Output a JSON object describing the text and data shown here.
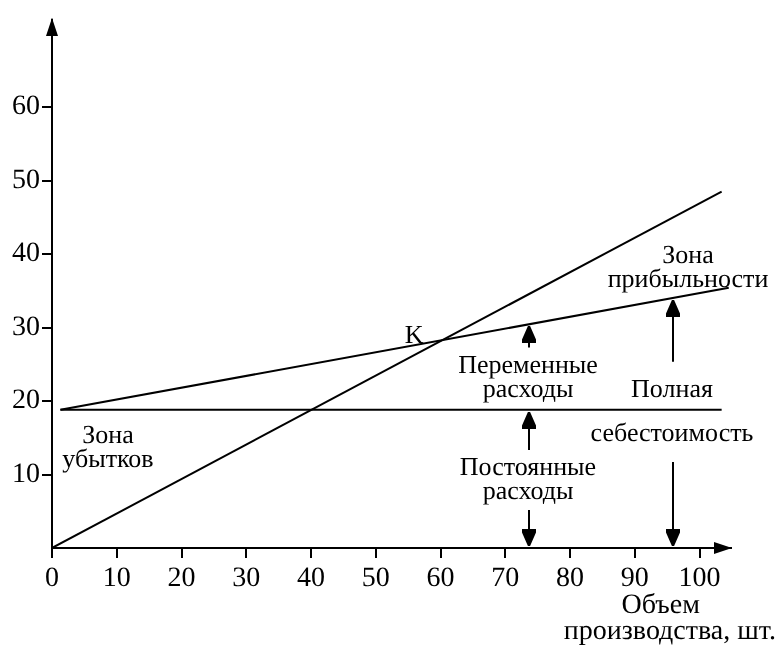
{
  "chart_data": {
    "type": "line",
    "xlabel": "Объем производства, шт.",
    "xlim": [
      0,
      105
    ],
    "ylim": [
      0,
      72
    ],
    "xticks": [
      0,
      10,
      20,
      30,
      40,
      50,
      60,
      70,
      80,
      90,
      100
    ],
    "yticks": [
      10,
      20,
      30,
      40,
      50,
      60
    ],
    "series": [
      {
        "color": "#000000",
        "x": [
          0,
          103.4
        ],
        "values": [
          0,
          48.5
        ]
      },
      {
        "color": "#000000",
        "x": [
          1.3,
          104.5
        ],
        "values": [
          18.8,
          35.4
        ]
      },
      {
        "color": "#000000",
        "x": [
          1.3,
          103.4
        ],
        "values": [
          18.8,
          18.8
        ]
      }
    ],
    "annotations": [
      "K",
      "Зона прибыльности",
      "Переменные расходы",
      "Постоянные расходы",
      "Полная себестоимость",
      "Зона убытков"
    ],
    "grid": false,
    "legend": false,
    "marker": "none",
    "line_style": "solid"
  }
}
